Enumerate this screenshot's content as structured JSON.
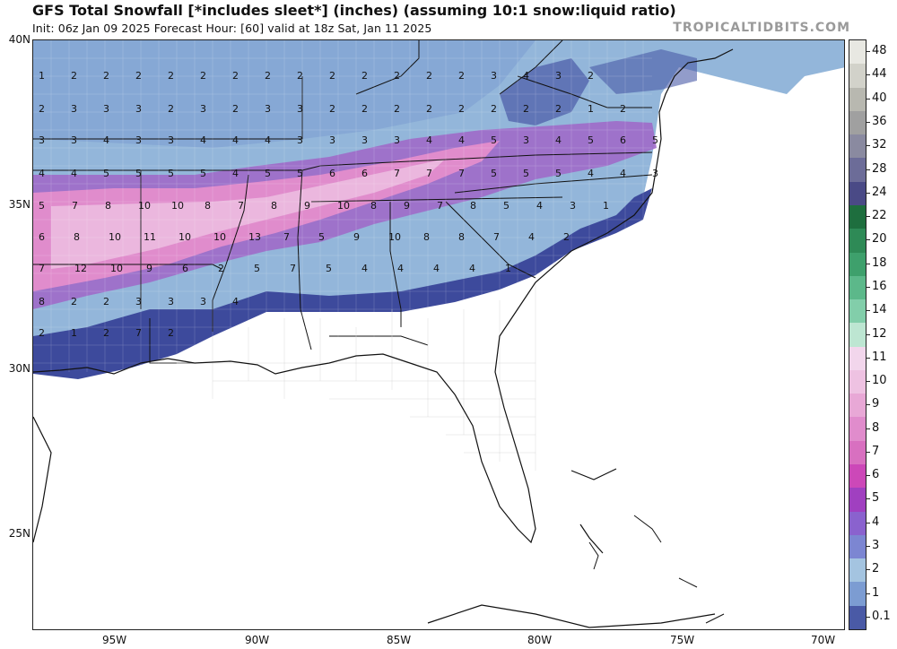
{
  "header": {
    "title": "GFS Total Snowfall [*includes sleet*] (inches) (assuming 10:1 snow:liquid ratio)",
    "subtitle": "Init: 06z Jan 09 2025   Forecast Hour: [60]   valid at 18z Sat, Jan 11 2025",
    "credit": "TROPICALTIDBITS.COM"
  },
  "axes": {
    "lat_labels": [
      "40N",
      "35N",
      "30N",
      "25N"
    ],
    "lon_labels": [
      "95W",
      "90W",
      "85W",
      "80W",
      "75W",
      "70W"
    ]
  },
  "colorbar": {
    "labels": [
      "48",
      "44",
      "40",
      "36",
      "32",
      "28",
      "24",
      "22",
      "20",
      "18",
      "16",
      "14",
      "12",
      "11",
      "10",
      "9",
      "8",
      "7",
      "6",
      "5",
      "4",
      "3",
      "2",
      "1",
      "0.1"
    ],
    "colors": [
      "#e8e8e2",
      "#d2d2ca",
      "#b8b8b0",
      "#a0a0a0",
      "#8a8aa0",
      "#6c6c98",
      "#4a4a86",
      "#1e6e3e",
      "#2e8a56",
      "#3ea06c",
      "#5cb88a",
      "#82ceaa",
      "#bde6d2",
      "#f2d6ec",
      "#eec2e2",
      "#e8a8d6",
      "#e08ccc",
      "#d870c0",
      "#cc48b8",
      "#a040c0",
      "#8a62ce",
      "#7c86d2",
      "#a4c4e0",
      "#7c9cd2",
      "#4a5aa6",
      "#3a4496"
    ]
  },
  "map_labels": {
    "values": [
      [
        "1",
        "2",
        "2",
        "2",
        "2",
        "2",
        "2",
        "2",
        "2",
        "2",
        "2",
        "2",
        "2",
        "2",
        "3",
        "4",
        "3",
        "2"
      ],
      [
        "2",
        "3",
        "3",
        "3",
        "2",
        "3",
        "2",
        "3",
        "3",
        "2",
        "2",
        "2",
        "2",
        "2",
        "2",
        "2",
        "2",
        "1",
        "2"
      ],
      [
        "3",
        "3",
        "4",
        "3",
        "3",
        "4",
        "4",
        "4",
        "3",
        "3",
        "3",
        "3",
        "4",
        "4",
        "5",
        "3",
        "4",
        "5",
        "6",
        "5"
      ],
      [
        "4",
        "4",
        "5",
        "5",
        "5",
        "5",
        "4",
        "5",
        "5",
        "6",
        "6",
        "7",
        "7",
        "7",
        "5",
        "5",
        "5",
        "4",
        "4",
        "3"
      ],
      [
        "5",
        "7",
        "8",
        "10",
        "10",
        "8",
        "7",
        "8",
        "9",
        "10",
        "8",
        "9",
        "7",
        "8",
        "5",
        "4",
        "3",
        "1"
      ],
      [
        "6",
        "8",
        "10",
        "11",
        "10",
        "10",
        "13",
        "7",
        "5",
        "9",
        "10",
        "8",
        "8",
        "7",
        "4",
        "2"
      ],
      [
        "7",
        "12",
        "10",
        "9",
        "6",
        "2",
        "5",
        "7",
        "5",
        "4",
        "4",
        "4",
        "4",
        "1"
      ],
      [
        "8",
        "2",
        "2",
        "3",
        "3",
        "3",
        "4"
      ],
      [
        "2",
        "1",
        "2",
        "7",
        "2"
      ]
    ]
  }
}
